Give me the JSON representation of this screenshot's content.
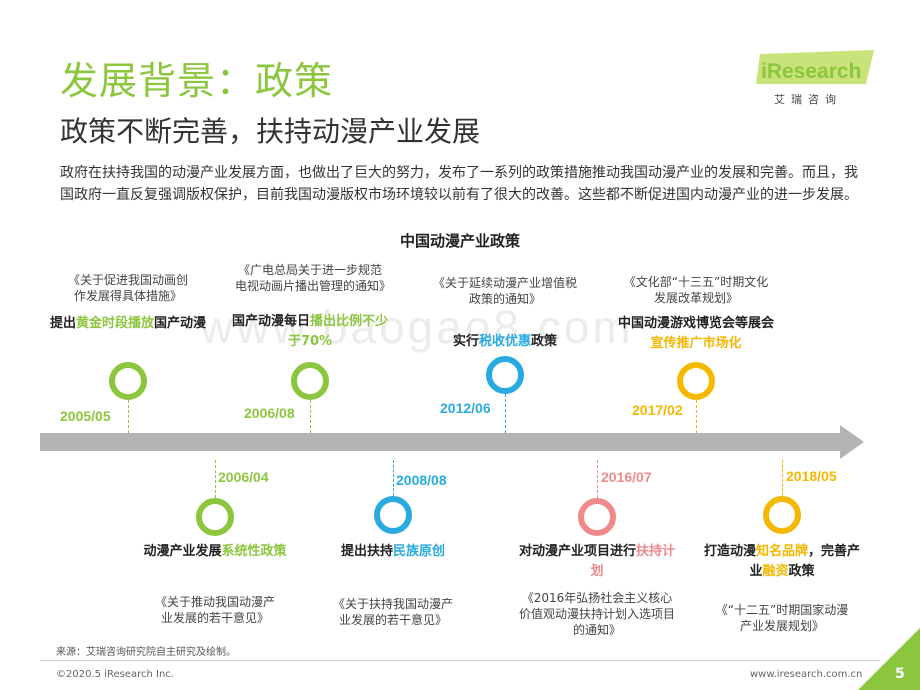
{
  "header": {
    "title": "发展背景：政策",
    "subtitle": "政策不断完善，扶持动漫产业发展"
  },
  "brand": {
    "logo_text": "iResearch",
    "logo_cn": "艾瑞咨询"
  },
  "intro_text": "政府在扶持我国的动漫产业发展方面，也做出了巨大的努力，发布了一系列的政策措施推动我国动漫产业的发展和完善。而且，我国政府一直反复强调版权保护，目前我国动漫版权市场环境较以前有了很大的改善。这些都不断促进国内动漫产业的进一步发展。",
  "chart_title": "中国动漫产业政策",
  "watermark": "www.baogao8.com",
  "colors": {
    "green": "#8cc63f",
    "blue": "#29aae1",
    "yellow": "#f5b800",
    "pink": "#f08a8a",
    "gray": "#b3b3b3"
  },
  "events_top": [
    {
      "date": "2005/05",
      "doc": "《关于促进我国动画创作发展得具体措施》",
      "action_parts": [
        "提出",
        "黄金时段",
        "播放",
        "国产动漫"
      ],
      "color": "#8cc63f",
      "date_color": "#8cc63f"
    },
    {
      "date": "2006/08",
      "doc": "《广电总局关于进一步规范电视动画片播出管理的通知》",
      "action_parts": [
        "国产动漫每日",
        "播出",
        "比例不少于70%"
      ],
      "color": "#8cc63f",
      "date_color": "#8cc63f"
    },
    {
      "date": "2012/06",
      "doc": "《关于延续动漫产业增值税政策的通知》",
      "action_parts": [
        "实行",
        "税收优惠",
        "政策"
      ],
      "color": "#29aae1",
      "date_color": "#29aae1"
    },
    {
      "date": "2017/02",
      "doc": "《文化部“十三五”时期文化发展改革规划》",
      "action_parts": [
        "中国动漫游戏博览会等展会",
        "宣传推广市场化"
      ],
      "color": "#f5b800",
      "date_color": "#f5b800"
    }
  ],
  "events_bottom": [
    {
      "date": "2006/04",
      "doc": "《关于推动我国动漫产业发展的若干意见》",
      "action_parts": [
        "动漫产业发展",
        "系统性政策"
      ],
      "color": "#8cc63f",
      "date_color": "#8cc63f"
    },
    {
      "date": "2008/08",
      "doc": "《关于扶持我国动漫产业发展的若干意见》",
      "action_parts": [
        "提出扶持",
        "民族原创"
      ],
      "color": "#29aae1",
      "date_color": "#29aae1"
    },
    {
      "date": "2016/07",
      "doc": "《2016年弘扬社会主义核心价值观动漫扶持计划入选项目的通知》",
      "action_parts": [
        "对动漫产业项目进行",
        "扶持计划"
      ],
      "color": "#f08a8a",
      "date_color": "#f08a8a"
    },
    {
      "date": "2018/05",
      "doc": "《“十二五”时期国家动漫产业发展规划》",
      "action_parts": [
        "打造动漫",
        "知名品牌",
        "，完善产业",
        "融资",
        "政策"
      ],
      "color": "#f5b800",
      "date_color": "#f5b800"
    }
  ],
  "footer": {
    "source": "来源：艾瑞咨询研究院自主研究及绘制。",
    "copyright": "©2020.5 iResearch Inc.",
    "url": "www.iresearch.com.cn",
    "page": "5"
  }
}
